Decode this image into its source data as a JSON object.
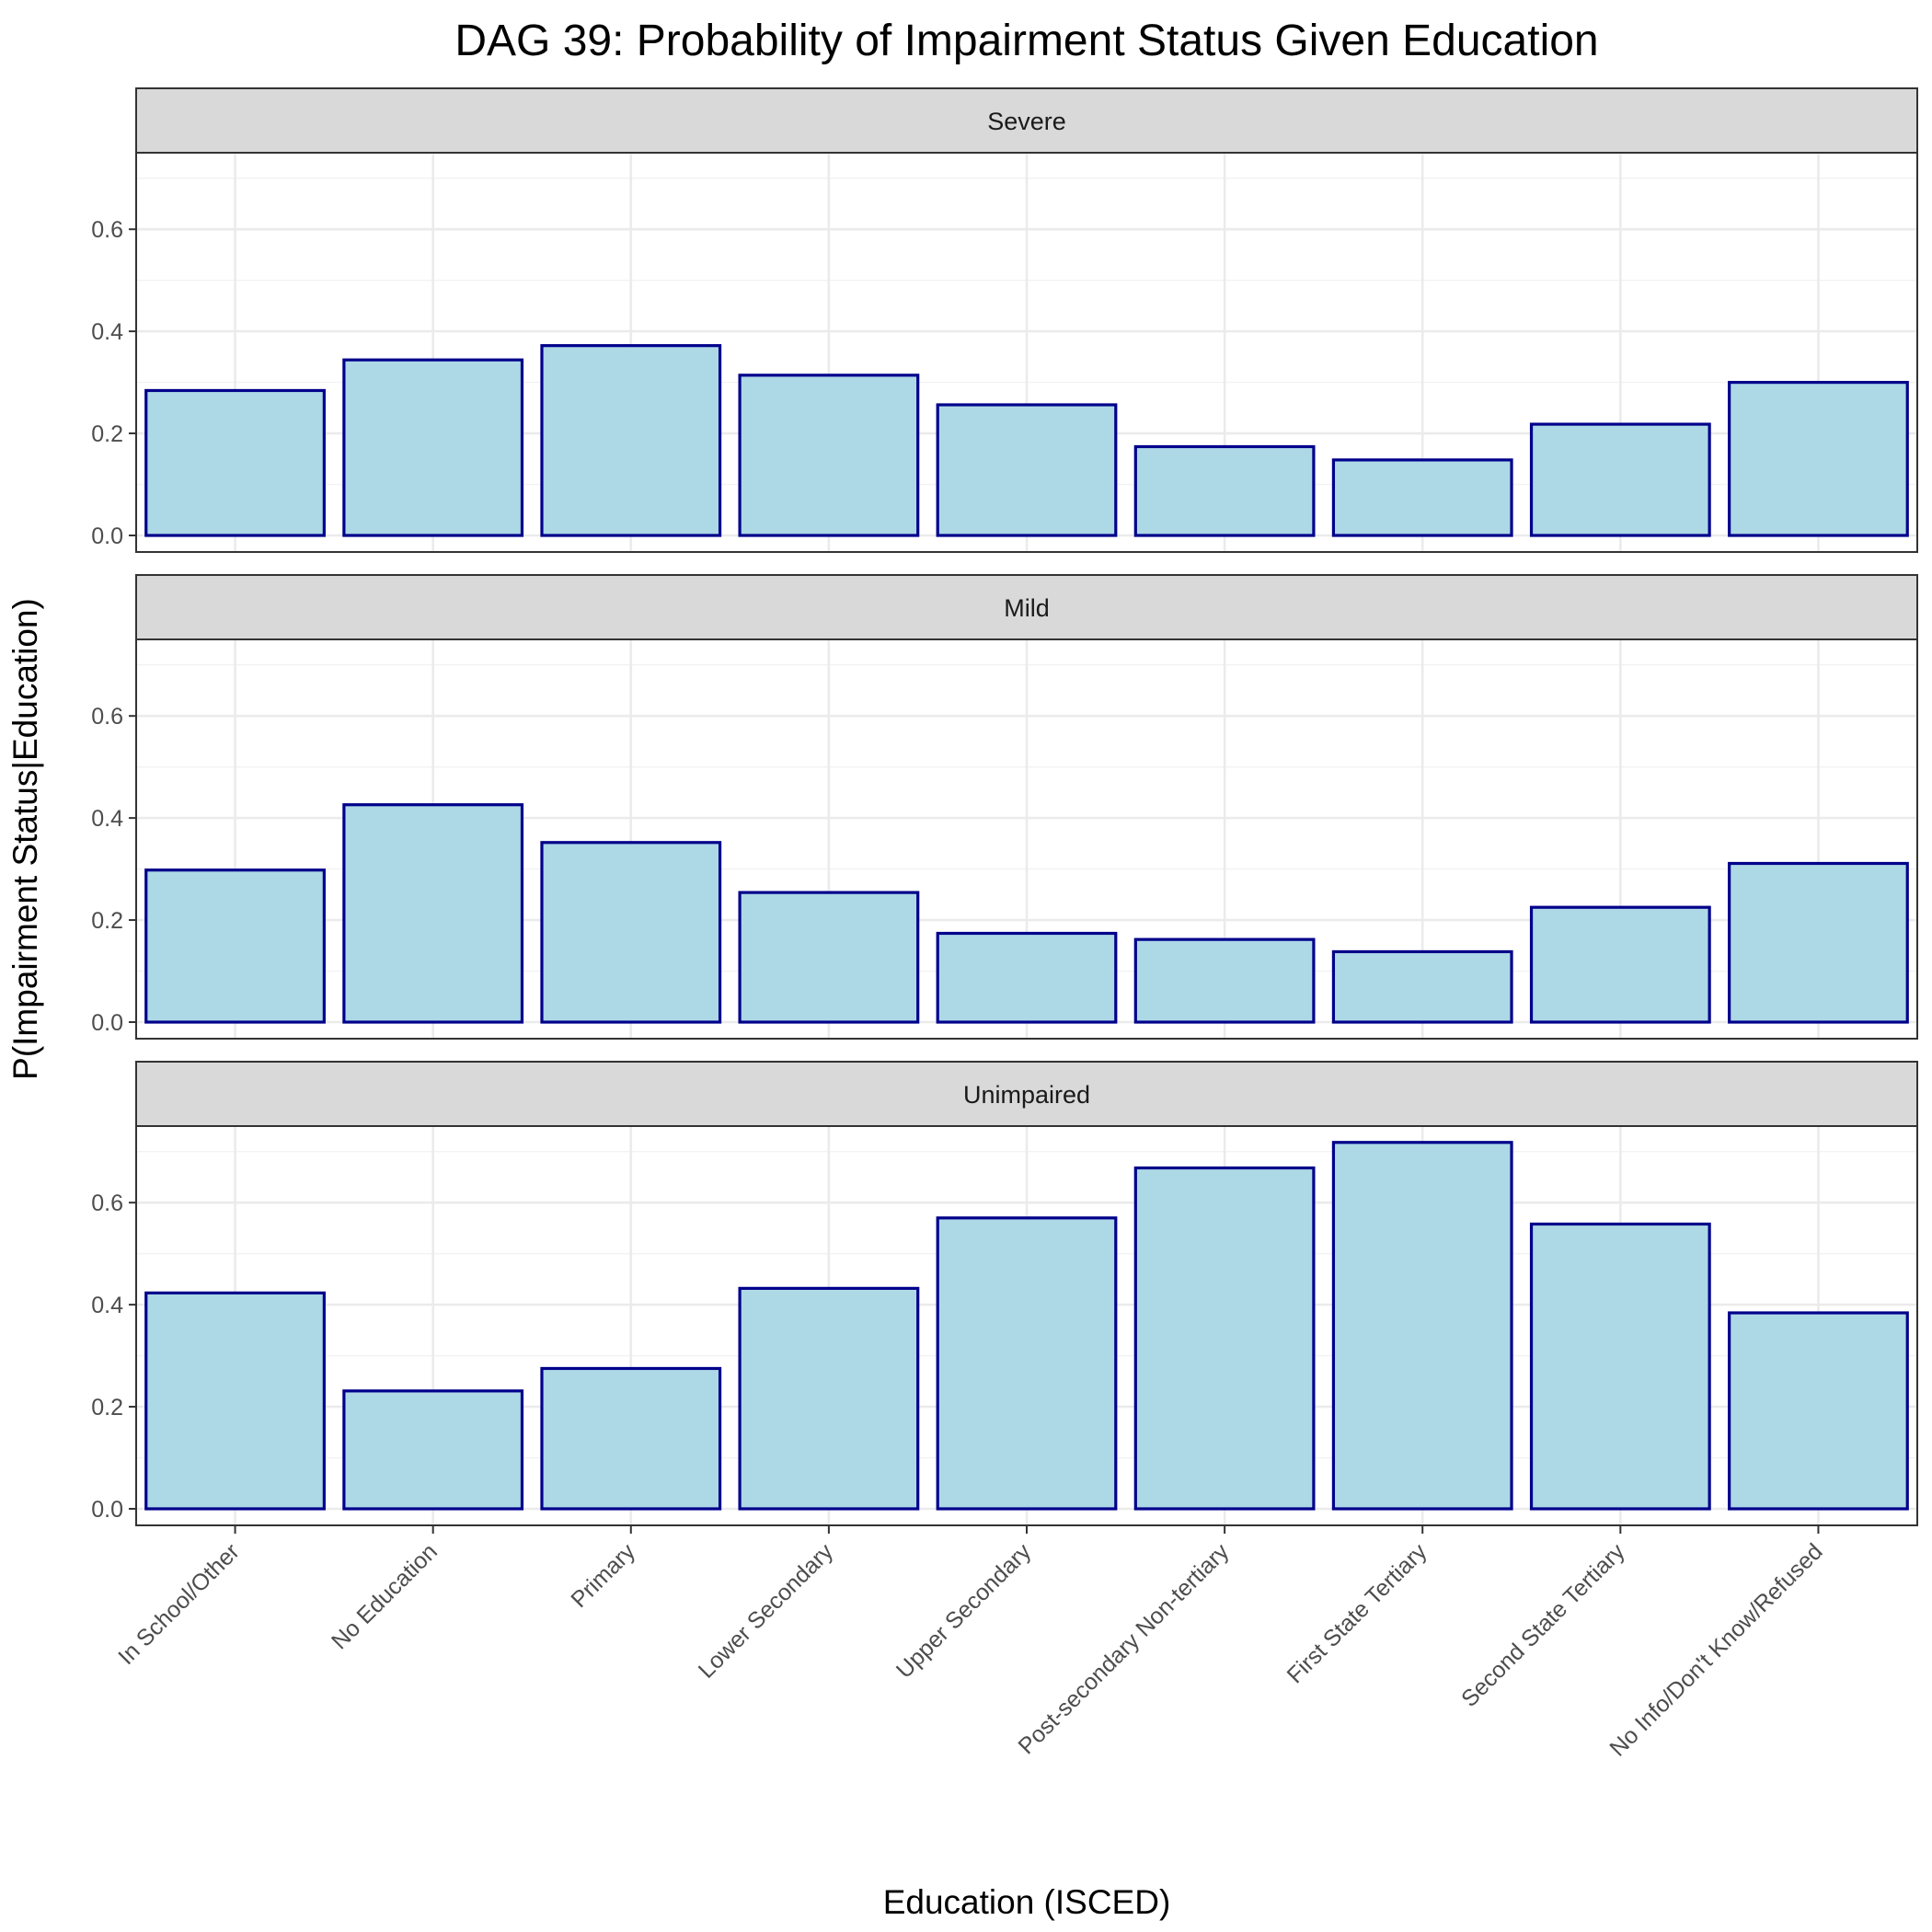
{
  "chart_data": {
    "type": "bar",
    "title": "DAG 39: Probability of Impairment Status Given Education",
    "xlabel": "Education (ISCED)",
    "ylabel": "P(Impairment Status|Education)",
    "categories": [
      "In School/Other",
      "No Education",
      "Primary",
      "Lower Secondary",
      "Upper Secondary",
      "Post-secondary Non-tertiary",
      "First State Tertiary",
      "Second State Tertiary",
      "No Info/Don't Know/Refused"
    ],
    "ylim": [
      0,
      0.75
    ],
    "yticks": [
      "0.0",
      "0.2",
      "0.4",
      "0.6"
    ],
    "grid": true,
    "legend": "none",
    "colors": {
      "bar_fill": "#add8e6",
      "bar_outline": "#00008b",
      "strip": "#d9d9d9"
    },
    "panels": [
      {
        "name": "Severe",
        "values": [
          0.284,
          0.344,
          0.372,
          0.314,
          0.256,
          0.174,
          0.148,
          0.218,
          0.3
        ]
      },
      {
        "name": "Mild",
        "values": [
          0.298,
          0.426,
          0.352,
          0.254,
          0.174,
          0.162,
          0.138,
          0.225,
          0.311
        ]
      },
      {
        "name": "Unimpaired",
        "values": [
          0.423,
          0.231,
          0.275,
          0.432,
          0.57,
          0.668,
          0.718,
          0.558,
          0.384
        ]
      }
    ]
  }
}
